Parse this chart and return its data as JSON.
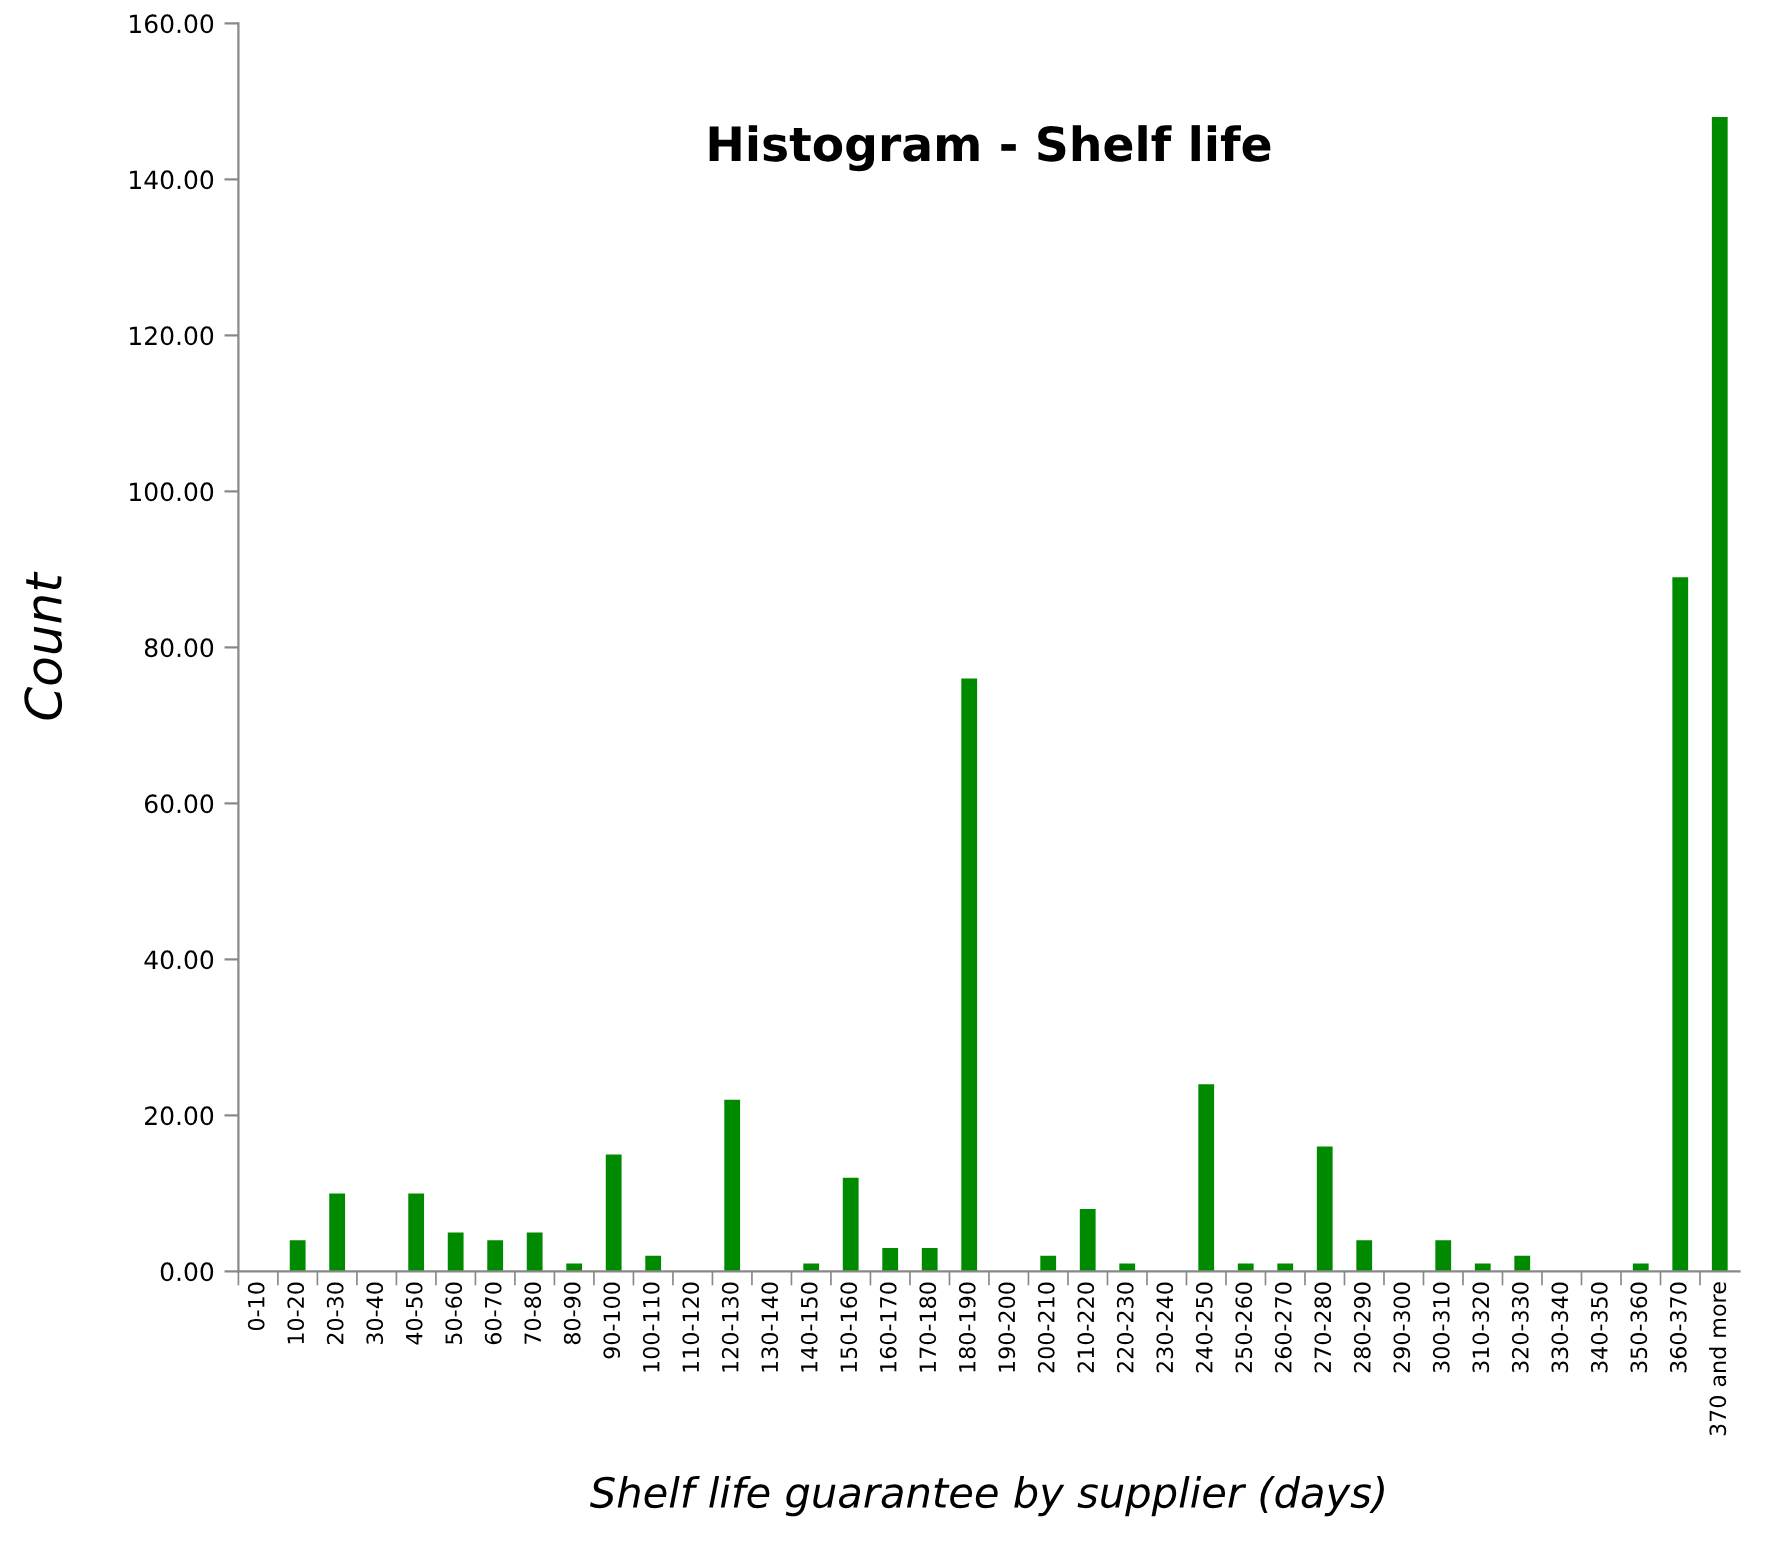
{
  "chart_data": {
    "type": "bar",
    "title": "Histogram - Shelf life",
    "xlabel": "Shelf life guarantee by supplier (days)",
    "ylabel": "Count",
    "categories": [
      "0-10",
      "10-20",
      "20-30",
      "30-40",
      "40-50",
      "50-60",
      "60-70",
      "70-80",
      "80-90",
      "90-100",
      "100-110",
      "110-120",
      "120-130",
      "130-140",
      "140-150",
      "150-160",
      "160-170",
      "170-180",
      "180-190",
      "190-200",
      "200-210",
      "210-220",
      "220-230",
      "230-240",
      "240-250",
      "250-260",
      "260-270",
      "270-280",
      "280-290",
      "290-300",
      "300-310",
      "310-320",
      "320-330",
      "330-340",
      "340-350",
      "350-360",
      "360-370",
      "370 and more"
    ],
    "values": [
      0,
      4,
      10,
      0,
      10,
      5,
      4,
      5,
      1,
      15,
      2,
      0,
      22,
      0,
      1,
      12,
      3,
      3,
      76,
      0,
      2,
      8,
      1,
      0,
      24,
      1,
      1,
      16,
      4,
      0,
      4,
      1,
      2,
      0,
      0,
      1,
      89,
      148
    ],
    "color": "#008a00",
    "ylim": [
      0,
      160
    ],
    "yticks": [
      {
        "value": 0,
        "label": "0.00"
      },
      {
        "value": 20,
        "label": "20.00"
      },
      {
        "value": 40,
        "label": "40.00"
      },
      {
        "value": 60,
        "label": "60.00"
      },
      {
        "value": 80,
        "label": "80.00"
      },
      {
        "value": 100,
        "label": "100.00"
      },
      {
        "value": 120,
        "label": "120.00"
      },
      {
        "value": 140,
        "label": "140.00"
      },
      {
        "value": 160,
        "label": "160.00"
      }
    ],
    "grid": false,
    "legend": false
  }
}
